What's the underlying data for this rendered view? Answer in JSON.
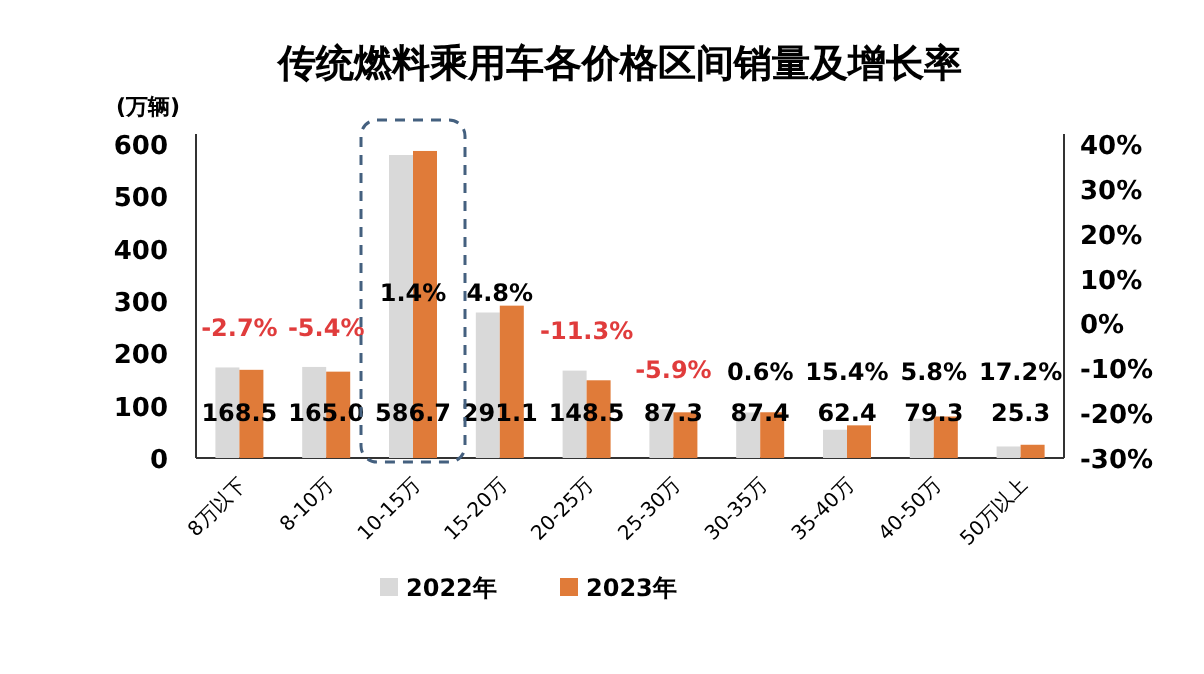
{
  "chart_data": {
    "type": "bar",
    "title": "传统燃料乘用车各价格区间销量及增长率",
    "ylabel": "(万辆)",
    "categories": [
      "8万以下",
      "8-10万",
      "10-15万",
      "15-20万",
      "20-25万",
      "25-30万",
      "30-35万",
      "35-40万",
      "40-50万",
      "50万以上"
    ],
    "series": [
      {
        "name": "2022年",
        "color": "#d9d9d9",
        "values": [
          173,
          174,
          579,
          278,
          167,
          93,
          87,
          54,
          75,
          22
        ]
      },
      {
        "name": "2023年",
        "color": "#e07b39",
        "values": [
          168.5,
          165.0,
          586.7,
          291.1,
          148.5,
          87.3,
          87.4,
          62.4,
          79.3,
          25.3
        ],
        "value_labels": [
          "168.5",
          "165.0",
          "586.7",
          "291.1",
          "148.5",
          "87.3",
          "87.4",
          "62.4",
          "79.3",
          "25.3"
        ]
      }
    ],
    "ylim": [
      0,
      600
    ],
    "yticks": [
      0,
      100,
      200,
      300,
      400,
      500,
      600
    ],
    "y2lim": [
      -30,
      40
    ],
    "y2ticks": [
      {
        "value": -30,
        "label": "-30%"
      },
      {
        "value": -20,
        "label": "-20%"
      },
      {
        "value": -10,
        "label": "-10%"
      },
      {
        "value": 0,
        "label": "0%"
      },
      {
        "value": 10,
        "label": "10%"
      },
      {
        "value": 20,
        "label": "20%"
      },
      {
        "value": 30,
        "label": "30%"
      },
      {
        "value": 40,
        "label": "40%"
      }
    ],
    "annotations": [
      "-2.7%",
      "-5.4%",
      "1.4%",
      "4.8%",
      "-11.3%",
      "-5.9%",
      "0.6%",
      "15.4%",
      "5.8%",
      "17.2%"
    ],
    "legend": "bottom",
    "grid": false
  }
}
